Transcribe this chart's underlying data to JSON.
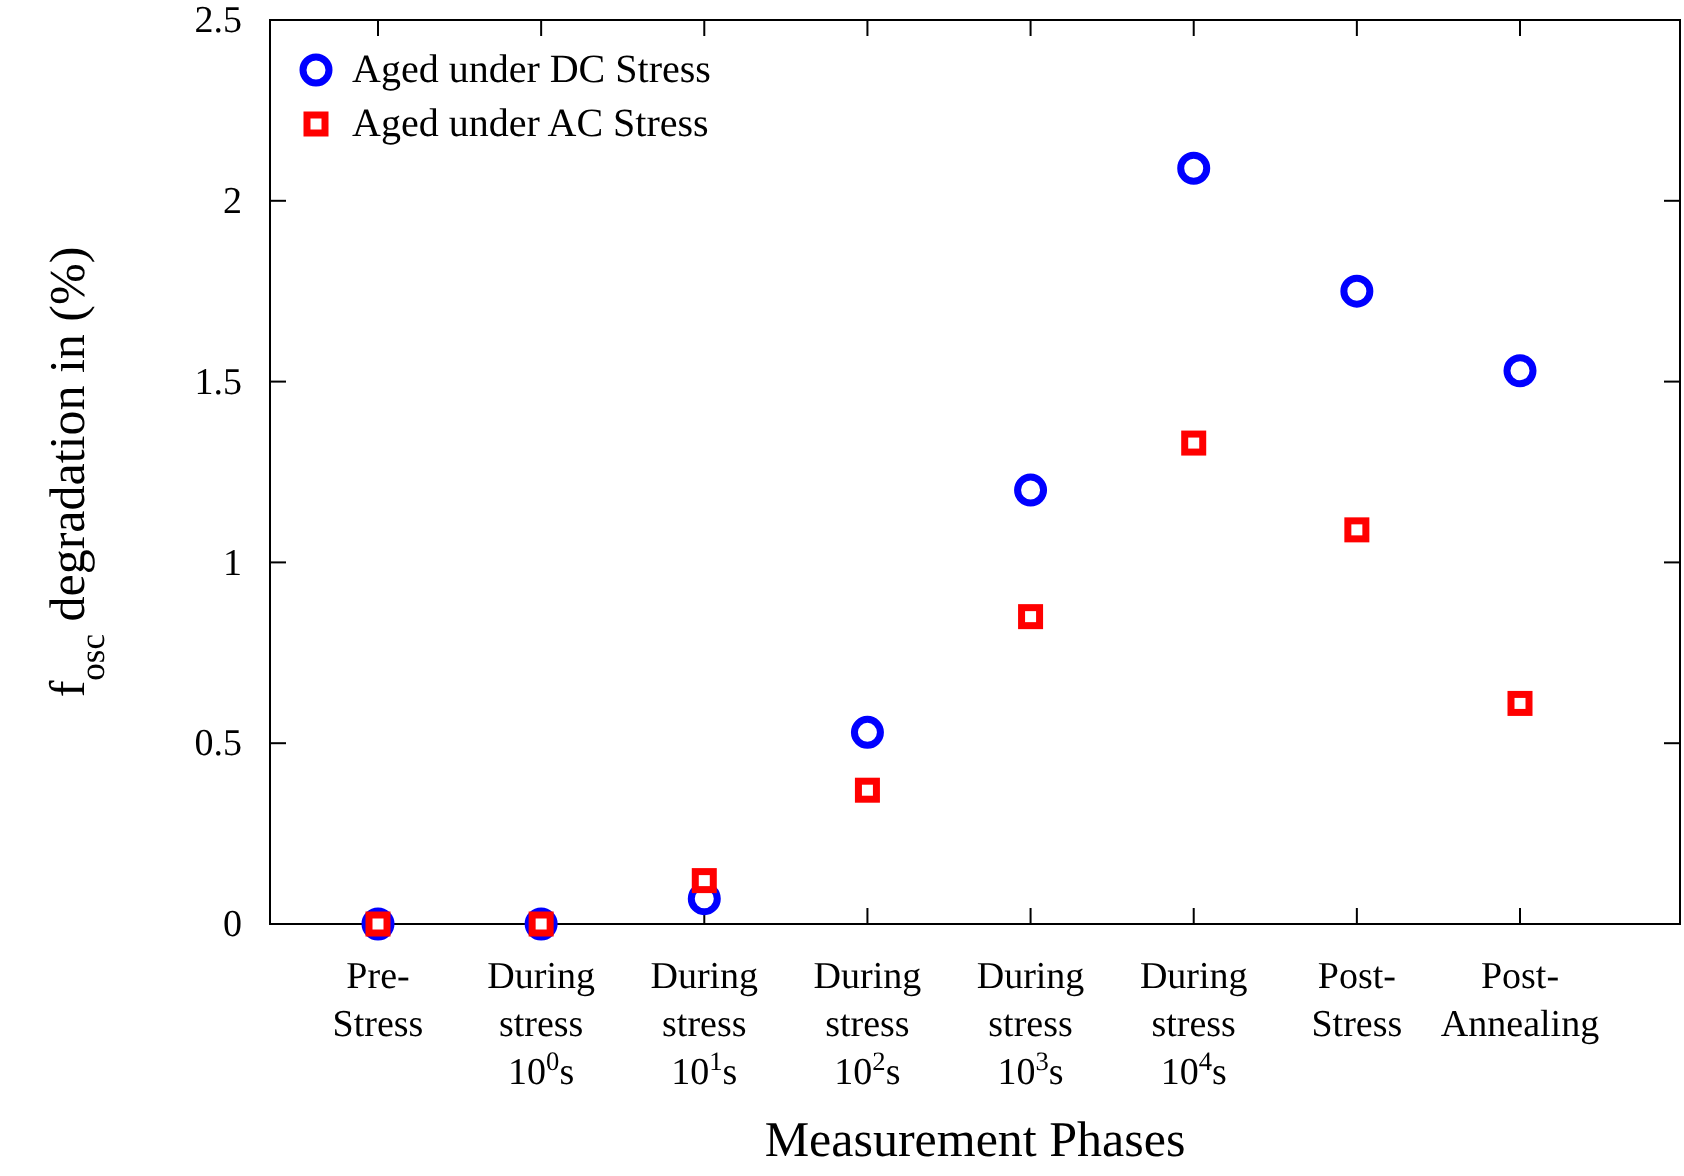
{
  "chart_data": {
    "type": "scatter",
    "xlabel": "Measurement Phases",
    "ylabel": "f$_{osc}$ degradation in (%)",
    "categories": [
      "Pre-\nStress",
      "During\nstress\n10$^{0}$s",
      "During\nstress\n10$^{1}$s",
      "During\nstress\n10$^{2}$s",
      "During\nstress\n10$^{3}$s",
      "During\nstress\n10$^{4}$s",
      "Post-\nStress",
      "Post-\nAnnealing"
    ],
    "ylim": [
      0,
      2.5
    ],
    "yticks": [
      0,
      0.5,
      1,
      1.5,
      2,
      2.5
    ],
    "grid": false,
    "legend": "top left",
    "series": [
      {
        "name": "Aged under DC Stress",
        "color": "#0000ff",
        "marker": "circle",
        "values": [
          0,
          0,
          0.07,
          0.53,
          1.2,
          2.09,
          1.75,
          1.53
        ]
      },
      {
        "name": "Aged under AC Stress",
        "color": "#ff0000",
        "marker": "square",
        "values": [
          0,
          0,
          0.12,
          0.37,
          0.85,
          1.33,
          1.09,
          0.61
        ]
      }
    ]
  }
}
